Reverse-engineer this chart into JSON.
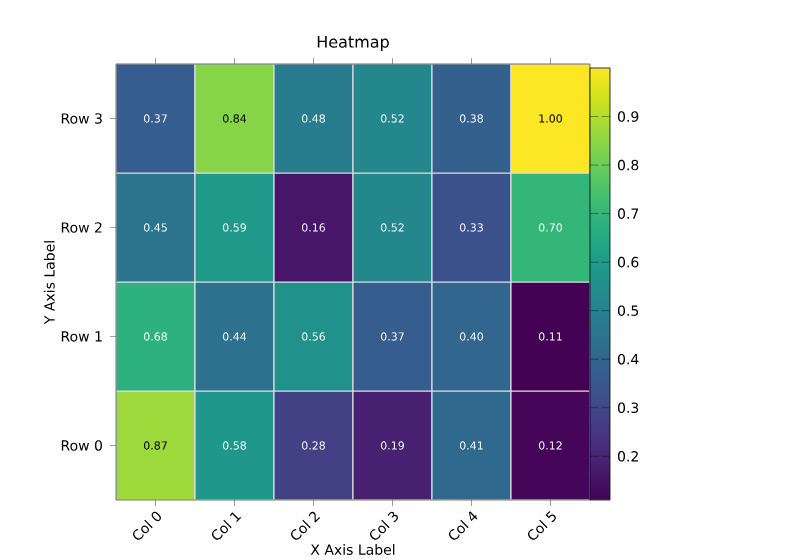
{
  "chart_data": {
    "type": "heatmap",
    "title": "Heatmap",
    "xlabel": "X Axis Label",
    "ylabel": "Y Axis Label",
    "categories": [
      "Col 0",
      "Col 1",
      "Col 2",
      "Col 3",
      "Col 4",
      "Col 5"
    ],
    "y_categories": [
      "Row 3",
      "Row 2",
      "Row 1",
      "Row 0"
    ],
    "cells": [
      [
        0.37,
        0.84,
        0.48,
        0.52,
        0.38,
        1.0
      ],
      [
        0.45,
        0.59,
        0.16,
        0.52,
        0.33,
        0.7
      ],
      [
        0.68,
        0.44,
        0.56,
        0.37,
        0.4,
        0.11
      ],
      [
        0.87,
        0.58,
        0.28,
        0.19,
        0.41,
        0.12
      ]
    ],
    "cell_labels": [
      [
        "0.37",
        "0.84",
        "0.48",
        "0.52",
        "0.38",
        "1.00"
      ],
      [
        "0.45",
        "0.59",
        "0.16",
        "0.52",
        "0.33",
        "0.70"
      ],
      [
        "0.68",
        "0.44",
        "0.56",
        "0.37",
        "0.40",
        "0.11"
      ],
      [
        "0.87",
        "0.58",
        "0.28",
        "0.19",
        "0.41",
        "0.12"
      ]
    ],
    "clim": [
      0.11,
      1.0
    ],
    "cticks": [
      0.2,
      0.3,
      0.4,
      0.5,
      0.6,
      0.7,
      0.8,
      0.9
    ]
  }
}
